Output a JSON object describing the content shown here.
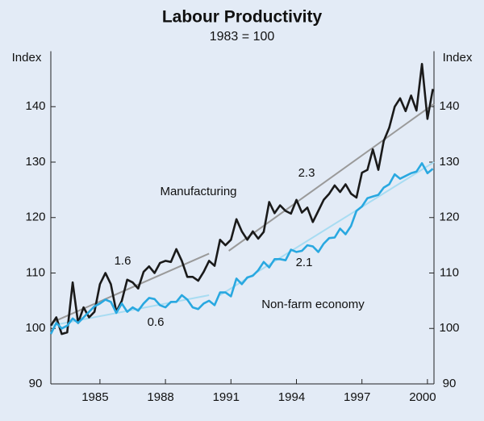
{
  "chart_data": {
    "type": "line",
    "title": "Labour Productivity",
    "subtitle": "1983 = 100",
    "ylabel": "Index",
    "y2label": "Index",
    "xlim": [
      1982.75,
      2000.3
    ],
    "xticks": [
      1985,
      1988,
      1991,
      1994,
      1997,
      2000
    ],
    "ylim": [
      90,
      150
    ],
    "yticks": [
      90,
      100,
      110,
      120,
      130,
      140
    ],
    "y2lim": [
      90,
      150
    ],
    "y2ticks": [
      90,
      100,
      110,
      120,
      130,
      140
    ],
    "x": [
      1982.75,
      1983,
      1983.25,
      1983.5,
      1983.75,
      1984,
      1984.25,
      1984.5,
      1984.75,
      1985,
      1985.25,
      1985.5,
      1985.75,
      1986,
      1986.25,
      1986.5,
      1986.75,
      1987,
      1987.25,
      1987.5,
      1987.75,
      1988,
      1988.25,
      1988.5,
      1988.75,
      1989,
      1989.25,
      1989.5,
      1989.75,
      1990,
      1990.25,
      1990.5,
      1990.75,
      1991,
      1991.25,
      1991.5,
      1991.75,
      1992,
      1992.25,
      1992.5,
      1992.75,
      1993,
      1993.25,
      1993.5,
      1993.75,
      1994,
      1994.25,
      1994.5,
      1994.75,
      1995,
      1995.25,
      1995.5,
      1995.75,
      1996,
      1996.25,
      1996.5,
      1996.75,
      1997,
      1997.25,
      1997.5,
      1997.75,
      1998,
      1998.25,
      1998.5,
      1998.75,
      1999,
      1999.25,
      1999.5,
      1999.75,
      2000,
      2000.25
    ],
    "series": [
      {
        "name": "Manufacturing",
        "color": "#1a1a1a",
        "values": [
          100.5,
          102,
          99,
          99.3,
          108.3,
          101,
          103.8,
          102,
          103,
          108,
          110,
          108,
          103,
          105,
          108.8,
          108.3,
          107.2,
          110.2,
          111.2,
          110,
          111.8,
          112.2,
          112,
          114.3,
          112.2,
          109.3,
          109.3,
          108.6,
          110.2,
          112.2,
          111.3,
          116,
          115,
          116,
          119.7,
          117.5,
          116,
          117.5,
          116.2,
          117.4,
          122.8,
          120.8,
          122.2,
          121.2,
          120.7,
          123.2,
          120.9,
          121.8,
          119.2,
          121.2,
          123.2,
          124.3,
          125.8,
          124.6,
          126,
          124.3,
          123.6,
          128.1,
          128.6,
          132.3,
          128.6,
          133.8,
          136.2,
          140,
          141.5,
          139.2,
          142,
          139.3,
          147.7,
          137.8,
          143.2
        ]
      },
      {
        "name": "Non-farm economy",
        "color": "#29a8e0",
        "values": [
          99,
          101,
          100,
          100.5,
          101.8,
          101,
          102,
          103,
          104,
          104.5,
          105.2,
          104.8,
          102.8,
          104.5,
          103,
          103.8,
          103.2,
          104.5,
          105.5,
          105.3,
          104.2,
          103.8,
          104.8,
          104.8,
          106,
          105.2,
          103.8,
          103.5,
          104.5,
          105,
          104.2,
          106.5,
          106.5,
          105.8,
          109,
          108,
          109.2,
          109.5,
          110.5,
          112,
          111,
          112.5,
          112.5,
          112.3,
          114.2,
          113.8,
          114,
          115,
          114.8,
          113.8,
          115.3,
          116.3,
          116.4,
          118,
          117,
          118.5,
          121.2,
          122,
          123.5,
          123.8,
          124.1,
          125.4,
          126,
          127.8,
          127,
          127.5,
          128,
          128.3,
          129.8,
          128,
          128.8
        ]
      }
    ],
    "trends": [
      {
        "label": "1.6",
        "color": "#9a9a9a",
        "x": [
          1982.75,
          1990
        ],
        "values": [
          101,
          113.5
        ]
      },
      {
        "label": "2.3",
        "color": "#9a9a9a",
        "x": [
          1990.9,
          2000.3
        ],
        "values": [
          114,
          140.5
        ]
      },
      {
        "label": "0.6",
        "color": "#a8dcf2",
        "x": [
          1982.75,
          1990
        ],
        "values": [
          100.5,
          106
        ]
      },
      {
        "label": "2.1",
        "color": "#a8dcf2",
        "x": [
          1990.5,
          2000.3
        ],
        "values": [
          106,
          130
        ]
      }
    ]
  }
}
